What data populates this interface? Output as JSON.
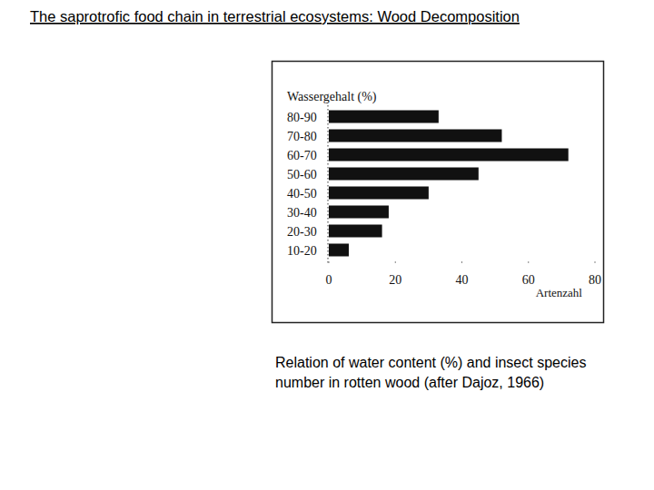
{
  "slide_title": "The saprotrofic food chain in terrestrial ecosystems: Wood Decomposition",
  "caption": [
    "Relation of water content (%) and insect species",
    "number in rotten wood (after Dajoz, 1966)"
  ],
  "chart_data": {
    "type": "bar",
    "orientation": "horizontal",
    "y_label": "Wassergehalt (%)",
    "x_label": "Artenzahl",
    "categories": [
      "80-90",
      "70-80",
      "60-70",
      "50-60",
      "40-50",
      "30-40",
      "20-30",
      "10-20"
    ],
    "values": [
      33,
      52,
      72,
      45,
      30,
      18,
      16,
      6
    ],
    "color": "#111111",
    "xlim": [
      0,
      80
    ],
    "xticks": [
      0,
      20,
      40,
      60,
      80
    ],
    "grid": false
  }
}
